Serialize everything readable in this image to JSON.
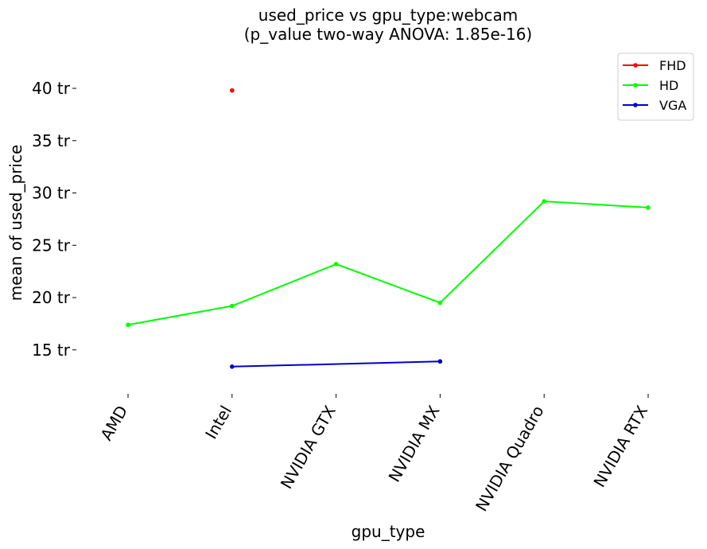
{
  "chart_data": {
    "type": "line",
    "title_line1": "used_price vs gpu_type:webcam",
    "title_line2": "(p_value two-way ANOVA: 1.85e-16)",
    "xlabel": "gpu_type",
    "ylabel": "mean of used_price",
    "categories": [
      "AMD",
      "Intel",
      "NVIDIA GTX",
      "NVIDIA MX",
      "NVIDIA Quadro",
      "NVIDIA RTX"
    ],
    "ylim": [
      10.8,
      43.5
    ],
    "yticks": [
      15,
      20,
      25,
      30,
      35,
      40
    ],
    "ytick_labels": [
      "15 tr",
      "20 tr",
      "25 tr",
      "30 tr",
      "35 tr",
      "40 tr"
    ],
    "legend_position": "top-right",
    "series": [
      {
        "name": "FHD",
        "color": "#ff0000",
        "values": [
          null,
          39.8,
          null,
          null,
          null,
          null
        ]
      },
      {
        "name": "HD",
        "color": "#00ff00",
        "values": [
          17.4,
          19.2,
          23.2,
          19.5,
          29.2,
          28.6
        ]
      },
      {
        "name": "VGA",
        "color": "#0000cc",
        "values": [
          null,
          13.4,
          null,
          13.9,
          null,
          null
        ]
      }
    ]
  }
}
